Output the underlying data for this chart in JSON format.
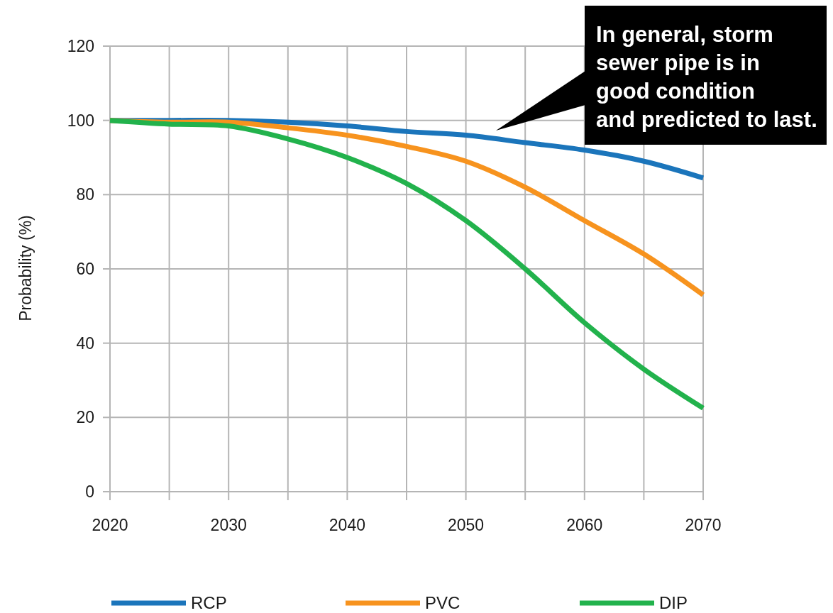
{
  "chart_data": {
    "type": "line",
    "ylabel": "Probability (%)",
    "x": [
      2020,
      2025,
      2030,
      2035,
      2040,
      2045,
      2050,
      2055,
      2060,
      2065,
      2070
    ],
    "series": [
      {
        "name": "RCP",
        "color": "#1b75bb",
        "values": [
          100,
          100,
          100,
          99.5,
          98.5,
          97,
          96,
          94,
          92,
          89,
          84.5
        ]
      },
      {
        "name": "PVC",
        "color": "#f7931e",
        "values": [
          100,
          99.5,
          99.5,
          98,
          96,
          93,
          89,
          82,
          73,
          64,
          53
        ]
      },
      {
        "name": "DIP",
        "color": "#22b24c",
        "values": [
          100,
          99,
          98.5,
          95,
          90,
          83,
          73,
          60,
          45.5,
          33,
          22.5
        ]
      }
    ],
    "xlim": [
      2020,
      2070
    ],
    "xticks": [
      2020,
      {
        "value": 2025,
        "label": null
      },
      2030,
      {
        "value": 2035,
        "label": null
      },
      2040,
      {
        "value": 2045,
        "label": null
      },
      2050,
      {
        "value": 2055,
        "label": null
      },
      2060,
      {
        "value": 2065,
        "label": null
      },
      2070
    ],
    "ylim": [
      0,
      120
    ],
    "yticks": [
      0,
      20,
      40,
      60,
      80,
      100,
      120
    ],
    "grid": true,
    "legend": "bottom",
    "line_style": "solid",
    "marker": "none",
    "annotations": [
      "In general, storm\nsewer pipe is in\ngood condition\nand predicted to last."
    ]
  }
}
